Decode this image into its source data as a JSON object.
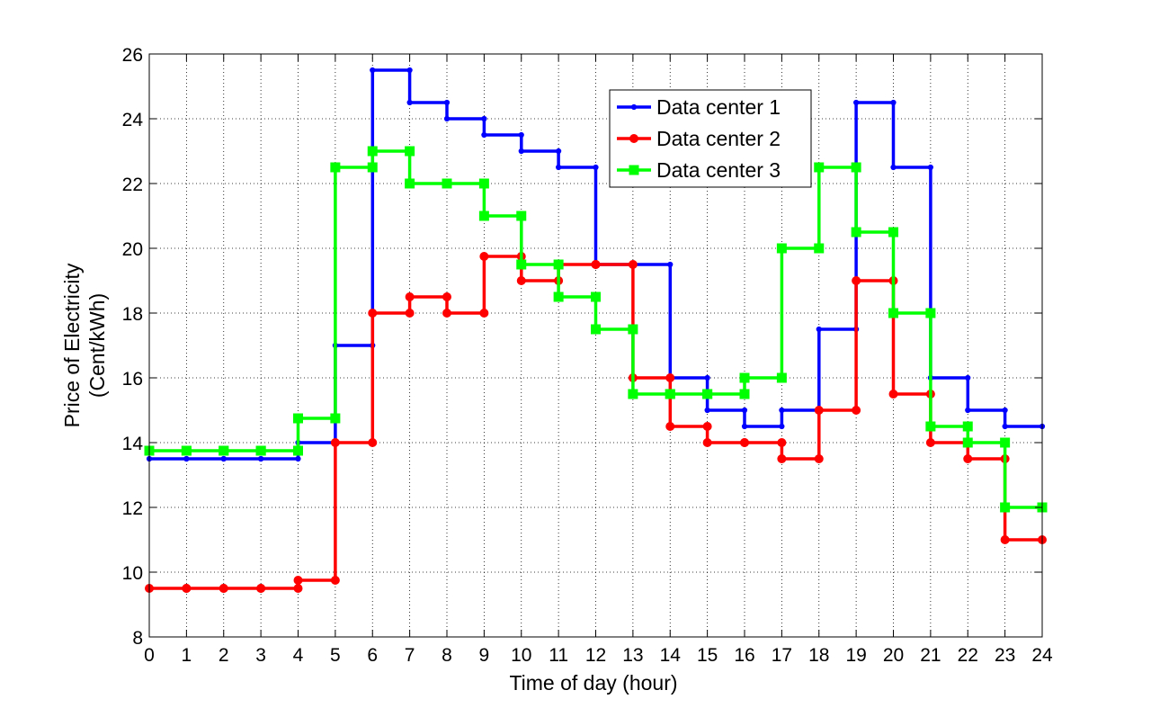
{
  "chart_data": {
    "type": "line",
    "step": true,
    "title": "",
    "xlabel": "Time of day (hour)",
    "ylabel_line1": "Price of Electricity",
    "ylabel_line2": "(Cent/kWh)",
    "xlim": [
      0,
      24
    ],
    "ylim": [
      8,
      26
    ],
    "xticks": [
      0,
      1,
      2,
      3,
      4,
      5,
      6,
      7,
      8,
      9,
      10,
      11,
      12,
      13,
      14,
      15,
      16,
      17,
      18,
      19,
      20,
      21,
      22,
      23,
      24
    ],
    "yticks": [
      8,
      10,
      12,
      14,
      16,
      18,
      20,
      22,
      24,
      26
    ],
    "grid": true,
    "legend_position": "top-right-center",
    "x": [
      0,
      1,
      2,
      3,
      4,
      5,
      6,
      7,
      8,
      9,
      10,
      11,
      12,
      13,
      14,
      15,
      16,
      17,
      18,
      19,
      20,
      21,
      22,
      23
    ],
    "series": [
      {
        "name": "Data center 1",
        "color": "#0000ff",
        "marker": "point",
        "values": [
          13.5,
          13.5,
          13.5,
          13.5,
          14,
          17,
          25.5,
          24.5,
          24,
          23.5,
          23,
          22.5,
          19.5,
          19.5,
          16,
          15,
          14.5,
          15,
          17.5,
          24.5,
          22.5,
          16,
          15,
          14.5
        ]
      },
      {
        "name": "Data center 2",
        "color": "#ff0000",
        "marker": "circle",
        "values": [
          9.5,
          9.5,
          9.5,
          9.5,
          9.75,
          14,
          18,
          18.5,
          18,
          19.75,
          19,
          19.5,
          19.5,
          16,
          14.5,
          14,
          14,
          13.5,
          15,
          19,
          15.5,
          14,
          13.5,
          11
        ]
      },
      {
        "name": "Data center 3",
        "color": "#00ff00",
        "marker": "square",
        "values": [
          13.75,
          13.75,
          13.75,
          13.75,
          14.75,
          22.5,
          23,
          22,
          22,
          21,
          19.5,
          18.5,
          17.5,
          15.5,
          15.5,
          15.5,
          16,
          20,
          22.5,
          20.5,
          18,
          14.5,
          14,
          12
        ]
      }
    ]
  }
}
